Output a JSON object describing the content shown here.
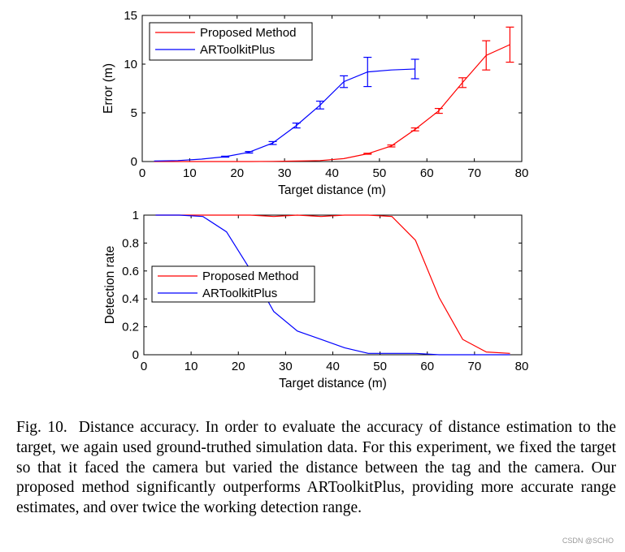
{
  "chart_data": [
    {
      "type": "line",
      "xlabel": "Target distance (m)",
      "ylabel": "Error (m)",
      "xlim": [
        0,
        80
      ],
      "ylim": [
        0,
        15
      ],
      "xticks": [
        0,
        10,
        20,
        30,
        40,
        50,
        60,
        70,
        80
      ],
      "yticks": [
        0,
        5,
        10,
        15
      ],
      "grid": false,
      "legend_position": "top-left",
      "series": [
        {
          "name": "Proposed Method",
          "color": "#ff0000",
          "x": [
            2.5,
            7.5,
            12.5,
            17.5,
            22.5,
            27.5,
            32.5,
            37.5,
            42.5,
            47.5,
            52.5,
            57.5,
            62.5,
            67.5,
            72.5,
            77.5
          ],
          "y": [
            0.0,
            0.0,
            0.0,
            0.0,
            0.0,
            0.02,
            0.05,
            0.1,
            0.3,
            0.8,
            1.6,
            3.3,
            5.2,
            8.1,
            10.9,
            12.0
          ],
          "err": [
            0,
            0,
            0,
            0,
            0,
            0,
            0,
            0,
            0,
            0.05,
            0.1,
            0.15,
            0.25,
            0.5,
            1.5,
            1.8
          ]
        },
        {
          "name": "ARToolkitPlus",
          "color": "#0000ff",
          "x": [
            2.5,
            7.5,
            12.5,
            17.5,
            22.5,
            27.5,
            32.5,
            37.5,
            42.5,
            47.5,
            52.5,
            57.5
          ],
          "y": [
            0.05,
            0.1,
            0.25,
            0.5,
            0.95,
            1.9,
            3.7,
            5.8,
            8.2,
            9.2,
            9.4,
            9.5
          ],
          "err": [
            0,
            0,
            0,
            0.05,
            0.08,
            0.15,
            0.25,
            0.4,
            0.6,
            1.5,
            0,
            1.0
          ]
        }
      ]
    },
    {
      "type": "line",
      "xlabel": "Target distance (m)",
      "ylabel": "Detection rate",
      "xlim": [
        0,
        80
      ],
      "ylim": [
        0,
        1
      ],
      "xticks": [
        0,
        10,
        20,
        30,
        40,
        50,
        60,
        70,
        80
      ],
      "yticks": [
        0,
        0.2,
        0.4,
        0.6,
        0.8,
        1
      ],
      "ytick_labels": [
        "0",
        "0.2",
        "0.4",
        "0.6",
        "0.8",
        "1"
      ],
      "grid": false,
      "legend_position": "middle-left",
      "series": [
        {
          "name": "Proposed Method",
          "color": "#ff0000",
          "x": [
            2.5,
            7.5,
            12.5,
            17.5,
            22.5,
            27.5,
            32.5,
            37.5,
            42.5,
            47.5,
            52.5,
            57.5,
            62.5,
            67.5,
            72.5,
            77.5
          ],
          "y": [
            1.0,
            1.0,
            1.0,
            1.0,
            1.0,
            0.99,
            1.0,
            0.99,
            1.0,
            1.0,
            0.99,
            0.82,
            0.41,
            0.11,
            0.02,
            0.01
          ]
        },
        {
          "name": "ARToolkitPlus",
          "color": "#0000ff",
          "x": [
            2.5,
            7.5,
            12.5,
            17.5,
            22.5,
            27.5,
            32.5,
            37.5,
            42.5,
            47.5,
            52.5,
            57.5,
            62.5,
            67.5,
            72.5,
            77.5
          ],
          "y": [
            1.0,
            1.0,
            0.99,
            0.88,
            0.61,
            0.31,
            0.17,
            0.11,
            0.05,
            0.01,
            0.01,
            0.01,
            0.0,
            0.0,
            0.0,
            0.0
          ]
        }
      ]
    }
  ],
  "caption": {
    "label": "Fig. 10.",
    "text": "Distance accuracy. In order to evaluate the accuracy of distance estimation to the target, we again used ground-truthed simulation data. For this experiment, we fixed the target so that it faced the camera but varied the distance between the tag and the camera. Our proposed method significantly outperforms ARToolkitPlus, providing more accurate range estimates, and over twice the working detection range."
  },
  "watermark": "CSDN @SCHO"
}
